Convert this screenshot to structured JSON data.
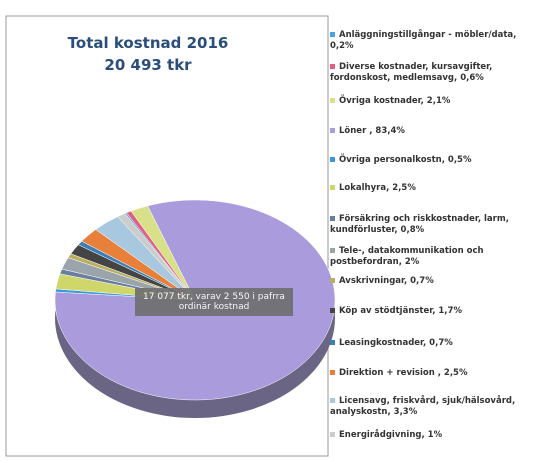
{
  "chart_data": {
    "type": "pie",
    "title": "Total kostnad 2016",
    "subtitle": "20 493 tkr",
    "annotation": "17 077 tkr, varav 2 550 i pafrra ordinär kostnad",
    "categories": [
      "Anläggningstillgångar - möbler/data, 0,2%",
      "Diverse kostnader, kursavgifter, fordonskost, medlemsavg, 0,6%",
      "Övriga kostnader, 2,1%",
      "Löner , 83,4%",
      "Övriga personalkostn, 0,5%",
      "Lokalhyra, 2,5%",
      "Försäkring och riskkostnader, larm, kundförluster, 0,8%",
      "Tele-, datakommunikation och postbefordran, 2%",
      "Avskrivningar, 0,7%",
      "Köp av stödtjänster, 1,7%",
      "Leasingkostnader, 0,7%",
      "Direktion + revision , 2,5%",
      "Licensavg, friskvård, sjuk/hälsovård, analyskostn, 3,3%",
      "Energirådgivning, 1%"
    ],
    "values": [
      0.2,
      0.6,
      2.1,
      83.4,
      0.5,
      2.5,
      0.8,
      2,
      0.7,
      1.7,
      0.7,
      2.5,
      3.3,
      1
    ],
    "colors": [
      "#4aa3df",
      "#e06080",
      "#d8e08a",
      "#a99bdc",
      "#3a9ad9",
      "#cfd66a",
      "#6a7fa0",
      "#9aa4aa",
      "#b8b060",
      "#444444",
      "#3c7fb8",
      "#e8803a",
      "#a8c8e0",
      "#cccccc"
    ]
  }
}
